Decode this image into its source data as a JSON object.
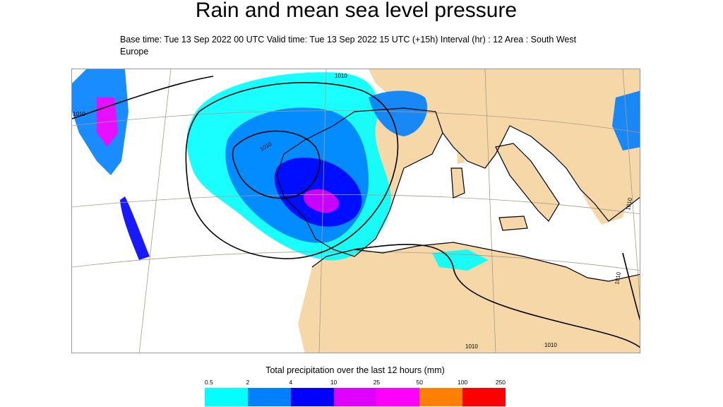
{
  "title": "Rain and mean sea level pressure",
  "subtitle": "Base time: Tue 13 Sep 2022 00 UTC Valid time: Tue 13 Sep 2022 15 UTC (+15h) Interval (hr) : 12 Area : South West Europe",
  "map": {
    "isobar_label": "1010",
    "colors": {
      "land": "#f6d7a7",
      "sea": "#ffffff",
      "coast": "#000000",
      "graticule": "#a89c8a"
    }
  },
  "legend": {
    "title": "Total precipitation over the last 12 hours (mm)",
    "unit": "mm",
    "thresholds": [
      "0.5",
      "2",
      "4",
      "10",
      "25",
      "50",
      "100",
      "250"
    ],
    "colors": [
      "#00ffff",
      "#0080ff",
      "#0000ff",
      "#df00ff",
      "#ff00ff",
      "#ff8000",
      "#ff0000"
    ]
  }
}
